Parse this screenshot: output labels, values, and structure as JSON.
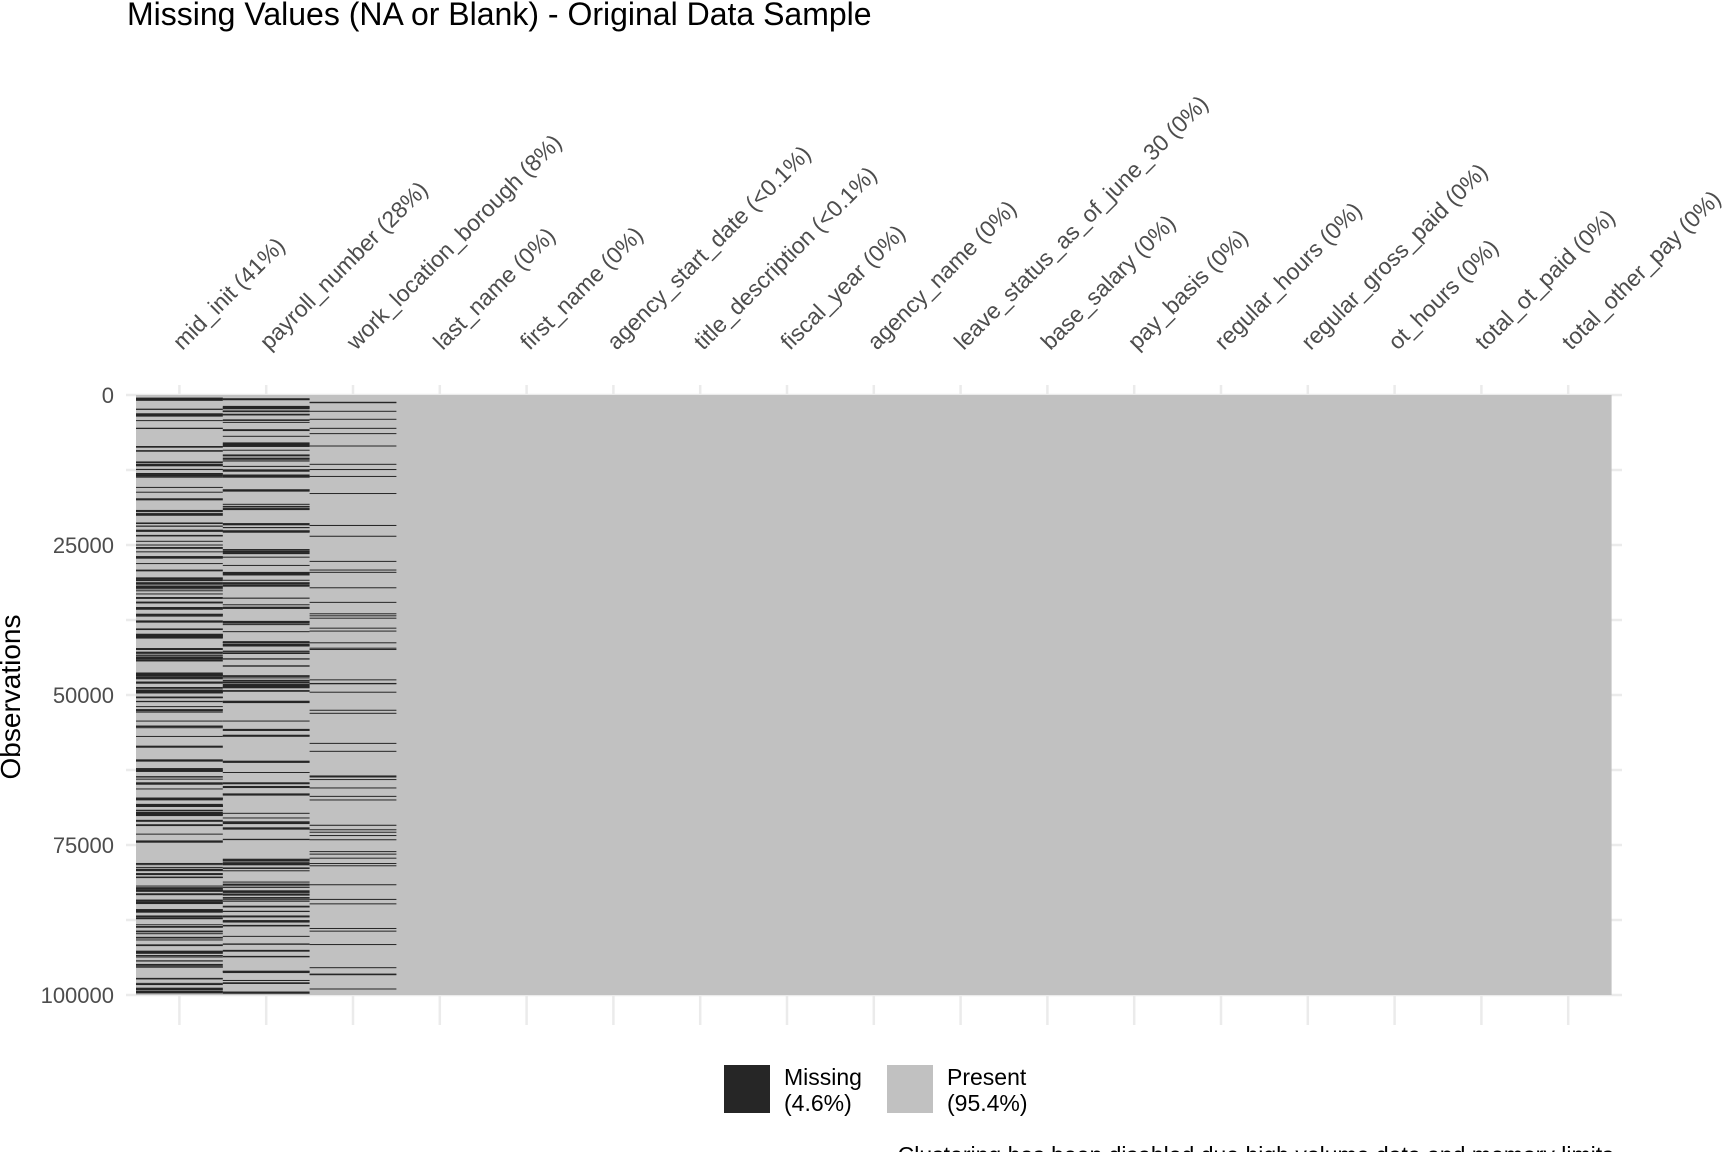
{
  "chart_data": {
    "type": "heatmap",
    "title": "Missing Values (NA or Blank) - Original Data Sample",
    "xlabel": "",
    "ylabel": "Observations",
    "ylim": [
      0,
      100000
    ],
    "y_reversed": true,
    "y_ticks": [
      0,
      25000,
      50000,
      75000,
      100000
    ],
    "grid": true,
    "legend_position": "bottom",
    "columns": [
      {
        "name": "mid_init",
        "label": "mid_init (41%)",
        "missing_pct": 41
      },
      {
        "name": "payroll_number",
        "label": "payroll_number (28%)",
        "missing_pct": 28
      },
      {
        "name": "work_location_borough",
        "label": "work_location_borough (8%)",
        "missing_pct": 8
      },
      {
        "name": "last_name",
        "label": "last_name (0%)",
        "missing_pct": 0
      },
      {
        "name": "first_name",
        "label": "first_name (0%)",
        "missing_pct": 0
      },
      {
        "name": "agency_start_date",
        "label": "agency_start_date (<0.1%)",
        "missing_pct": 0.05
      },
      {
        "name": "title_description",
        "label": "title_description (<0.1%)",
        "missing_pct": 0.05
      },
      {
        "name": "fiscal_year",
        "label": "fiscal_year (0%)",
        "missing_pct": 0
      },
      {
        "name": "agency_name",
        "label": "agency_name (0%)",
        "missing_pct": 0
      },
      {
        "name": "leave_status_as_of_june_30",
        "label": "leave_status_as_of_june_30 (0%)",
        "missing_pct": 0
      },
      {
        "name": "base_salary",
        "label": "base_salary (0%)",
        "missing_pct": 0
      },
      {
        "name": "pay_basis",
        "label": "pay_basis (0%)",
        "missing_pct": 0
      },
      {
        "name": "regular_hours",
        "label": "regular_hours (0%)",
        "missing_pct": 0
      },
      {
        "name": "regular_gross_paid",
        "label": "regular_gross_paid (0%)",
        "missing_pct": 0
      },
      {
        "name": "ot_hours",
        "label": "ot_hours (0%)",
        "missing_pct": 0
      },
      {
        "name": "total_ot_paid",
        "label": "total_ot_paid (0%)",
        "missing_pct": 0
      },
      {
        "name": "total_other_pay",
        "label": "total_other_pay (0%)",
        "missing_pct": 0
      }
    ],
    "legend": [
      {
        "key": "missing",
        "line1": "Missing",
        "line2": "(4.6%)",
        "color": "#262626"
      },
      {
        "key": "present",
        "line1": "Present",
        "line2": "(95.4%)",
        "color": "#c1c1c1"
      }
    ],
    "caption": "Clustering has been disabled due high volume data and memory limits."
  }
}
